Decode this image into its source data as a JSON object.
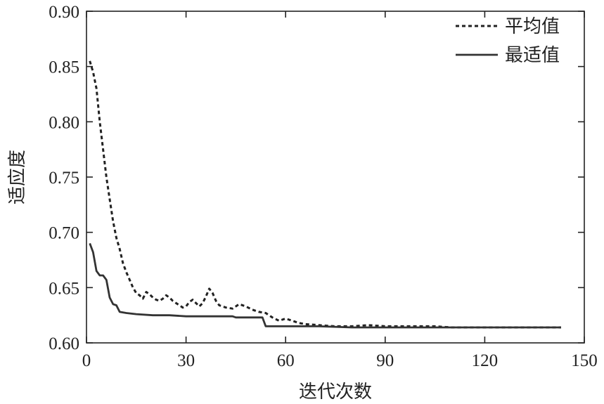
{
  "chart_data": {
    "type": "line",
    "title": "",
    "xlabel": "迭代次数",
    "ylabel": "适应度",
    "xlim": [
      0,
      150
    ],
    "ylim": [
      0.6,
      0.9
    ],
    "xticks": [
      "0",
      "30",
      "60",
      "90",
      "120",
      "150"
    ],
    "yticks": [
      "0.60",
      "0.65",
      "0.70",
      "0.75",
      "0.80",
      "0.85",
      "0.90"
    ],
    "grid": false,
    "legend_position": "top-right",
    "series": [
      {
        "name": "平均值",
        "style": "dashed",
        "color": "#222222",
        "points": [
          [
            1,
            0.855
          ],
          [
            2,
            0.845
          ],
          [
            3,
            0.83
          ],
          [
            4,
            0.8
          ],
          [
            5,
            0.775
          ],
          [
            6,
            0.75
          ],
          [
            7,
            0.73
          ],
          [
            8,
            0.71
          ],
          [
            9,
            0.695
          ],
          [
            10,
            0.685
          ],
          [
            11,
            0.672
          ],
          [
            12,
            0.664
          ],
          [
            13,
            0.657
          ],
          [
            14,
            0.65
          ],
          [
            15,
            0.645
          ],
          [
            16,
            0.643
          ],
          [
            17,
            0.64
          ],
          [
            18,
            0.646
          ],
          [
            19,
            0.644
          ],
          [
            20,
            0.641
          ],
          [
            21,
            0.639
          ],
          [
            22,
            0.638
          ],
          [
            23,
            0.64
          ],
          [
            24,
            0.643
          ],
          [
            25,
            0.641
          ],
          [
            26,
            0.638
          ],
          [
            27,
            0.636
          ],
          [
            28,
            0.634
          ],
          [
            29,
            0.632
          ],
          [
            30,
            0.633
          ],
          [
            31,
            0.637
          ],
          [
            32,
            0.639
          ],
          [
            33,
            0.636
          ],
          [
            34,
            0.633
          ],
          [
            35,
            0.636
          ],
          [
            36,
            0.642
          ],
          [
            37,
            0.649
          ],
          [
            38,
            0.645
          ],
          [
            39,
            0.638
          ],
          [
            40,
            0.634
          ],
          [
            42,
            0.632
          ],
          [
            44,
            0.631
          ],
          [
            46,
            0.635
          ],
          [
            48,
            0.633
          ],
          [
            50,
            0.63
          ],
          [
            52,
            0.628
          ],
          [
            54,
            0.627
          ],
          [
            56,
            0.623
          ],
          [
            58,
            0.62
          ],
          [
            60,
            0.622
          ],
          [
            62,
            0.62
          ],
          [
            64,
            0.618
          ],
          [
            66,
            0.617
          ],
          [
            70,
            0.616
          ],
          [
            75,
            0.615
          ],
          [
            80,
            0.615
          ],
          [
            85,
            0.616
          ],
          [
            90,
            0.615
          ],
          [
            95,
            0.615
          ],
          [
            100,
            0.615
          ],
          [
            105,
            0.615
          ],
          [
            110,
            0.614
          ],
          [
            120,
            0.614
          ],
          [
            130,
            0.614
          ],
          [
            143,
            0.614
          ]
        ]
      },
      {
        "name": "最适值",
        "style": "solid",
        "color": "#333333",
        "points": [
          [
            1,
            0.69
          ],
          [
            2,
            0.682
          ],
          [
            3,
            0.665
          ],
          [
            4,
            0.661
          ],
          [
            5,
            0.661
          ],
          [
            6,
            0.657
          ],
          [
            7,
            0.641
          ],
          [
            8,
            0.635
          ],
          [
            9,
            0.634
          ],
          [
            10,
            0.628
          ],
          [
            12,
            0.627
          ],
          [
            15,
            0.626
          ],
          [
            20,
            0.625
          ],
          [
            25,
            0.625
          ],
          [
            30,
            0.624
          ],
          [
            35,
            0.624
          ],
          [
            40,
            0.624
          ],
          [
            44,
            0.624
          ],
          [
            45,
            0.623
          ],
          [
            50,
            0.623
          ],
          [
            53,
            0.623
          ],
          [
            54,
            0.615
          ],
          [
            60,
            0.615
          ],
          [
            70,
            0.615
          ],
          [
            80,
            0.614
          ],
          [
            90,
            0.614
          ],
          [
            100,
            0.614
          ],
          [
            120,
            0.614
          ],
          [
            143,
            0.614
          ]
        ]
      }
    ]
  }
}
